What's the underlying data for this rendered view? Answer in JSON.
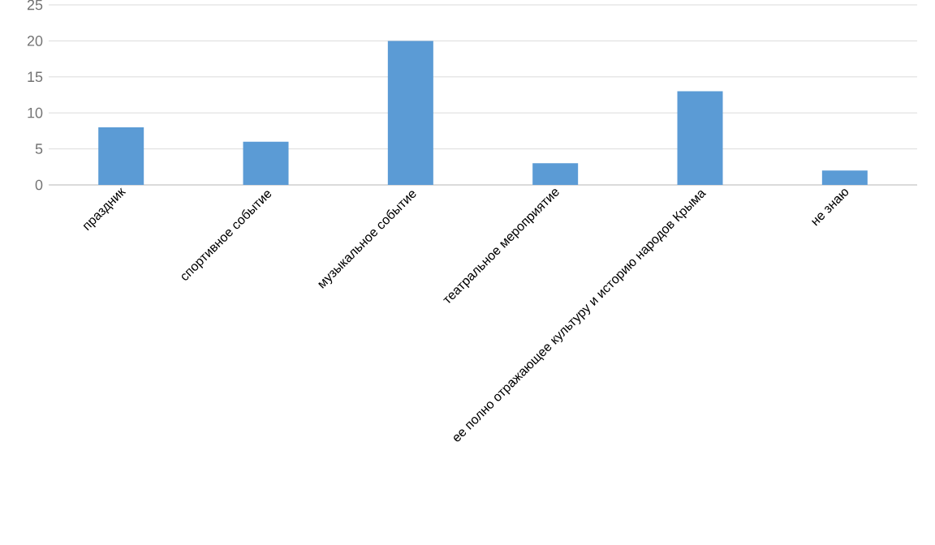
{
  "chart_data": {
    "type": "bar",
    "categories": [
      "праздник",
      "спортивное событие",
      "музыкальное событие",
      "театральное мероприятие",
      "ее полно отражающее культуру и историю народов Крыма",
      "не знаю"
    ],
    "values": [
      8,
      6,
      20,
      3,
      13,
      2
    ],
    "color": "#5b9bd5",
    "ylim": [
      0,
      25
    ],
    "yticks": [
      0,
      5,
      10,
      15,
      20,
      25
    ],
    "grid": "y"
  }
}
